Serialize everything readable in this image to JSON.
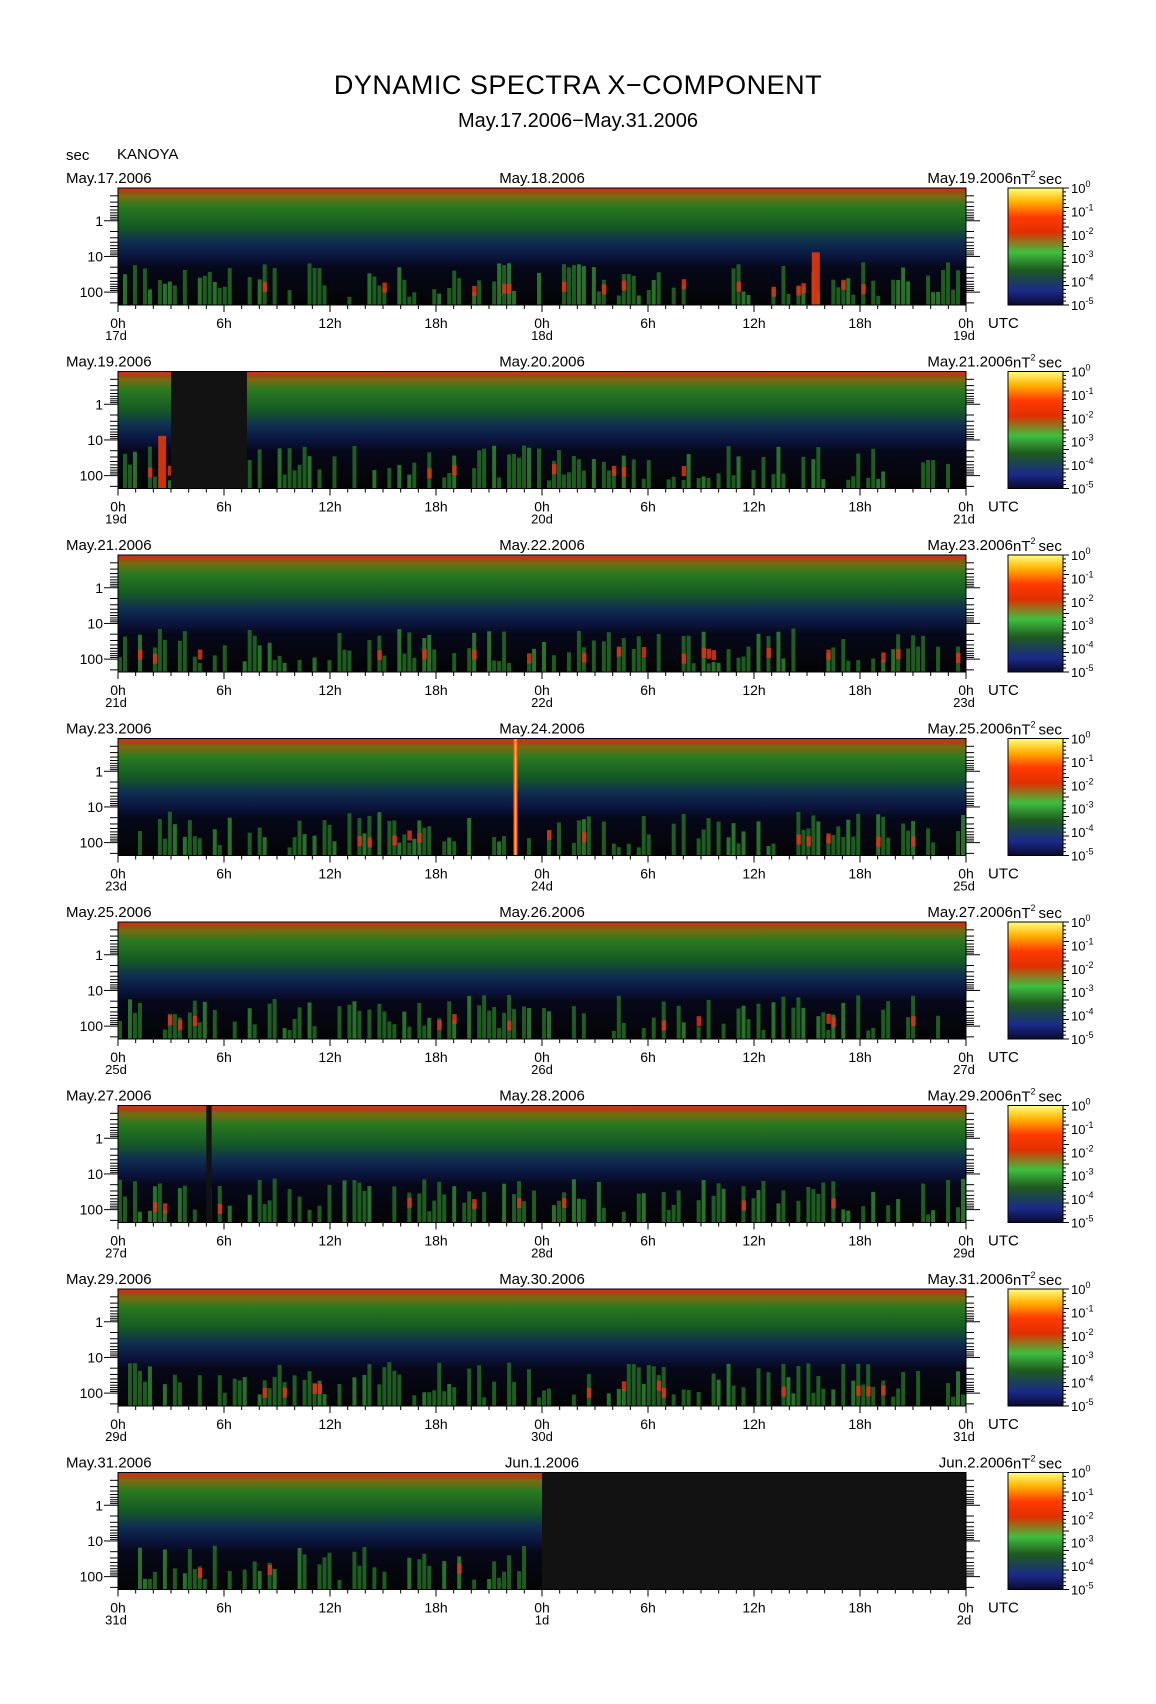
{
  "header": {
    "title": "DYNAMIC SPECTRA X−COMPONENT",
    "subtitle": "May.17.2006−May.31.2006",
    "y_unit": "sec",
    "station": "KANOYA"
  },
  "common": {
    "utc_label": "UTC",
    "hour_labels": [
      "0h",
      "6h",
      "12h",
      "18h",
      "0h",
      "6h",
      "12h",
      "18h",
      "0h"
    ],
    "y_tick_labels": [
      "1",
      "10",
      "100"
    ],
    "colorbar_unit_base": "nT",
    "colorbar_unit_exp": "2",
    "colorbar_unit_tail": "sec",
    "colorbar_tick_base": "10",
    "colorbar_tick_exps": [
      "0",
      "-1",
      "-2",
      "-3",
      "-4",
      "-5"
    ]
  },
  "panels": [
    {
      "date_start": "May.17.2006",
      "date_mid": "May.18.2006",
      "date_end": "May.19.2006",
      "day_start": "17d",
      "day_mid": "18d",
      "day_end": "19d"
    },
    {
      "date_start": "May.19.2006",
      "date_mid": "May.20.2006",
      "date_end": "May.21.2006",
      "day_start": "19d",
      "day_mid": "20d",
      "day_end": "21d"
    },
    {
      "date_start": "May.21.2006",
      "date_mid": "May.22.2006",
      "date_end": "May.23.2006",
      "day_start": "21d",
      "day_mid": "22d",
      "day_end": "23d"
    },
    {
      "date_start": "May.23.2006",
      "date_mid": "May.24.2006",
      "date_end": "May.25.2006",
      "day_start": "23d",
      "day_mid": "24d",
      "day_end": "25d"
    },
    {
      "date_start": "May.25.2006",
      "date_mid": "May.26.2006",
      "date_end": "May.27.2006",
      "day_start": "25d",
      "day_mid": "26d",
      "day_end": "27d"
    },
    {
      "date_start": "May.27.2006",
      "date_mid": "May.28.2006",
      "date_end": "May.29.2006",
      "day_start": "27d",
      "day_mid": "28d",
      "day_end": "29d"
    },
    {
      "date_start": "May.29.2006",
      "date_mid": "May.30.2006",
      "date_end": "May.31.2006",
      "day_start": "29d",
      "day_mid": "30d",
      "day_end": "31d"
    },
    {
      "date_start": "May.31.2006",
      "date_mid": "Jun.1.2006",
      "date_end": "Jun.2.2006",
      "day_start": "31d",
      "day_mid": "1d",
      "day_end": "2d"
    }
  ],
  "chart_data": {
    "type": "heatmap",
    "title": "DYNAMIC SPECTRA X−COMPONENT",
    "subtitle": "May.17.2006−May.31.2006",
    "ylabel": "sec",
    "xlabel": "UTC",
    "y_scale": "log",
    "y_ticks": [
      1,
      10,
      100
    ],
    "y_range_sec": [
      0.1,
      200
    ],
    "x_range_hours_per_panel": [
      0,
      48
    ],
    "x_ticks_hours": [
      0,
      6,
      12,
      18,
      24,
      30,
      36,
      42,
      48
    ],
    "colorbar": {
      "label": "nT^2 sec",
      "scale": "log",
      "range": [
        1e-05,
        1
      ],
      "colors_low_to_high": [
        "#0a0a30",
        "#1a2a88",
        "#1e6b1e",
        "#3fbf3f",
        "#ff3000",
        "#ffd000",
        "#ffff60"
      ]
    },
    "data_gaps_hours": [
      {
        "panel": 1,
        "from": 3,
        "to": 7.3
      },
      {
        "panel": 5,
        "from": 5.0,
        "to": 5.3
      },
      {
        "panel": 7,
        "from": 24,
        "to": 48
      }
    ],
    "notable_events_hours": [
      {
        "panel": 0,
        "hour": 39.5,
        "description_level": "high"
      },
      {
        "panel": 1,
        "hour": 2.5,
        "description_level": "high"
      },
      {
        "panel": 3,
        "hour": 22.5,
        "description_level": "very high"
      }
    ]
  }
}
